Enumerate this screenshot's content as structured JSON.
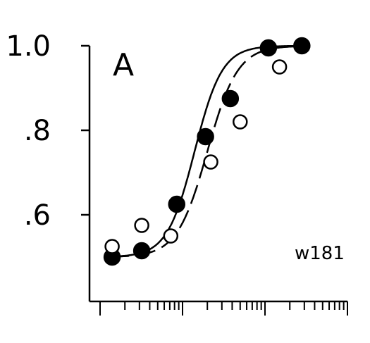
{
  "chart_data": {
    "type": "scatter",
    "panel_label": "A",
    "annotation": "w181",
    "x_scale": "log",
    "xlim": [
      1,
      1000
    ],
    "ylim": [
      0.4,
      1.0
    ],
    "y_ticks": [
      {
        "value": 1.0,
        "label": "1.0"
      },
      {
        "value": 0.8,
        "label": ".8"
      },
      {
        "value": 0.6,
        "label": ".6"
      }
    ],
    "series": [
      {
        "marker": "filled-circle",
        "curve": "solid",
        "x": [
          1.4,
          3.2,
          8.5,
          19,
          38,
          110,
          280
        ],
        "y": [
          0.5,
          0.515,
          0.625,
          0.785,
          0.875,
          0.995,
          1.0
        ]
      },
      {
        "marker": "open-circle",
        "curve": "dashed",
        "x": [
          1.4,
          3.2,
          7.2,
          22,
          50,
          150
        ],
        "y": [
          0.525,
          0.575,
          0.55,
          0.725,
          0.82,
          0.95
        ]
      }
    ]
  }
}
